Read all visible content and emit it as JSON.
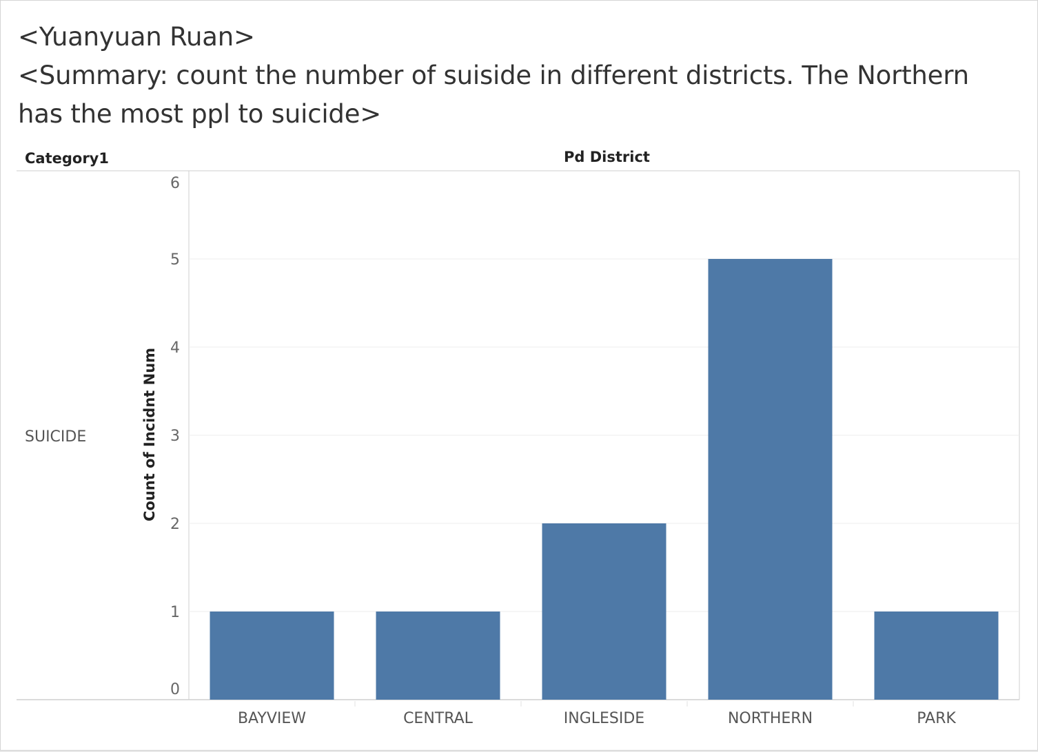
{
  "title": {
    "line1": "<Yuanyuan Ruan>",
    "line2": "<Summary: count the number of suiside in different districts. The Northern",
    "line3": "has the most ppl to suicide>"
  },
  "headers": {
    "row_header": "Category1",
    "column_header": "Pd District"
  },
  "row_label": "SUICIDE",
  "colors": {
    "bar": "#4e79a7",
    "grid": "#ececec",
    "axis": "#cfcfcf"
  },
  "chart_data": {
    "type": "bar",
    "categories": [
      "BAYVIEW",
      "CENTRAL",
      "INGLESIDE",
      "NORTHERN",
      "PARK"
    ],
    "values": [
      1,
      1,
      2,
      5,
      1
    ],
    "xlabel": "Pd District",
    "ylabel": "Count of Incidnt Num",
    "ylim": [
      0,
      6
    ],
    "yticks": [
      0,
      1,
      2,
      3,
      4,
      5,
      6
    ],
    "grid": true
  }
}
